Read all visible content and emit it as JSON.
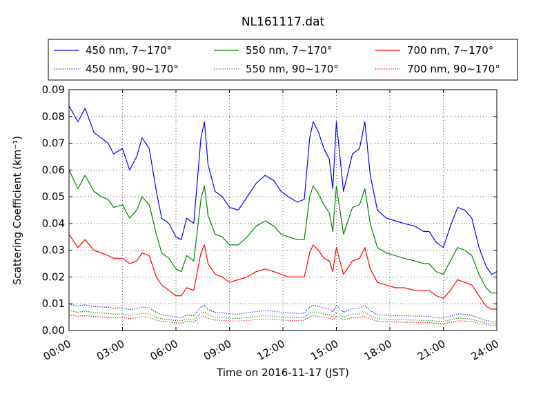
{
  "chart_data": {
    "type": "line",
    "title": "NL161117.dat",
    "xlabel": "Time on 2016-11-17 (JST)",
    "ylabel": "Scattering Coefficient (km⁻¹)",
    "x_unit": "hours",
    "xlim": [
      0,
      24
    ],
    "ylim": [
      0,
      0.09
    ],
    "xticks": [
      0,
      3,
      6,
      9,
      12,
      15,
      18,
      21,
      24
    ],
    "xtick_labels": [
      "00:00",
      "03:00",
      "06:00",
      "09:00",
      "12:00",
      "15:00",
      "18:00",
      "21:00",
      "24:00"
    ],
    "yticks": [
      0,
      0.01,
      0.02,
      0.03,
      0.04,
      0.05,
      0.06,
      0.07,
      0.08,
      0.09
    ],
    "ytick_labels": [
      "0.00",
      "0.01",
      "0.02",
      "0.03",
      "0.04",
      "0.05",
      "0.06",
      "0.07",
      "0.08",
      "0.09"
    ],
    "grid": true,
    "legend_position": "top",
    "x": [
      0,
      0.5,
      0.9,
      1.4,
      1.8,
      2.2,
      2.5,
      3.0,
      3.4,
      3.8,
      4.1,
      4.5,
      4.9,
      5.2,
      5.6,
      6.0,
      6.3,
      6.6,
      7.0,
      7.4,
      7.6,
      7.8,
      8.2,
      8.6,
      9.0,
      9.5,
      10.0,
      10.5,
      11.0,
      11.5,
      11.9,
      12.3,
      12.8,
      13.2,
      13.5,
      13.7,
      14.0,
      14.3,
      14.6,
      14.8,
      15.0,
      15.4,
      15.9,
      16.3,
      16.6,
      16.9,
      17.3,
      17.8,
      18.3,
      18.8,
      19.4,
      19.9,
      20.2,
      20.6,
      21.0,
      21.4,
      21.8,
      22.2,
      22.6,
      23.0,
      23.4,
      23.7,
      24.0
    ],
    "series": [
      {
        "name": "450 nm, 7∼170°",
        "color": "#0000ff",
        "dash": "solid",
        "values": [
          0.084,
          0.078,
          0.083,
          0.074,
          0.072,
          0.07,
          0.066,
          0.068,
          0.06,
          0.065,
          0.072,
          0.068,
          0.052,
          0.042,
          0.04,
          0.035,
          0.034,
          0.042,
          0.04,
          0.072,
          0.078,
          0.062,
          0.052,
          0.05,
          0.046,
          0.045,
          0.05,
          0.055,
          0.058,
          0.056,
          0.052,
          0.05,
          0.048,
          0.049,
          0.072,
          0.078,
          0.074,
          0.068,
          0.064,
          0.053,
          0.078,
          0.052,
          0.066,
          0.068,
          0.078,
          0.058,
          0.045,
          0.042,
          0.041,
          0.04,
          0.039,
          0.037,
          0.037,
          0.033,
          0.031,
          0.039,
          0.046,
          0.045,
          0.042,
          0.031,
          0.024,
          0.021,
          0.022
        ]
      },
      {
        "name": "550 nm, 7∼170°",
        "color": "#008000",
        "dash": "solid",
        "values": [
          0.06,
          0.053,
          0.058,
          0.052,
          0.05,
          0.049,
          0.046,
          0.047,
          0.042,
          0.045,
          0.05,
          0.047,
          0.036,
          0.029,
          0.027,
          0.023,
          0.022,
          0.028,
          0.026,
          0.049,
          0.054,
          0.043,
          0.036,
          0.035,
          0.032,
          0.032,
          0.035,
          0.039,
          0.041,
          0.039,
          0.036,
          0.035,
          0.034,
          0.034,
          0.05,
          0.054,
          0.051,
          0.047,
          0.044,
          0.037,
          0.054,
          0.036,
          0.046,
          0.047,
          0.053,
          0.04,
          0.031,
          0.029,
          0.028,
          0.027,
          0.026,
          0.025,
          0.025,
          0.022,
          0.021,
          0.026,
          0.031,
          0.03,
          0.028,
          0.021,
          0.016,
          0.014,
          0.014
        ]
      },
      {
        "name": "700 nm, 7∼170°",
        "color": "#ff0000",
        "dash": "solid",
        "values": [
          0.036,
          0.031,
          0.034,
          0.03,
          0.029,
          0.028,
          0.027,
          0.027,
          0.025,
          0.026,
          0.029,
          0.028,
          0.02,
          0.017,
          0.015,
          0.013,
          0.013,
          0.016,
          0.015,
          0.029,
          0.032,
          0.025,
          0.021,
          0.02,
          0.018,
          0.019,
          0.02,
          0.022,
          0.023,
          0.022,
          0.021,
          0.02,
          0.02,
          0.02,
          0.029,
          0.032,
          0.03,
          0.027,
          0.026,
          0.022,
          0.031,
          0.021,
          0.026,
          0.027,
          0.031,
          0.023,
          0.018,
          0.017,
          0.016,
          0.016,
          0.015,
          0.015,
          0.015,
          0.013,
          0.012,
          0.015,
          0.019,
          0.018,
          0.017,
          0.013,
          0.009,
          0.008,
          0.008
        ]
      },
      {
        "name": "450 nm, 90∼170°",
        "color": "#0000ff",
        "dash": "dotted",
        "values": [
          0.0098,
          0.0092,
          0.0096,
          0.009,
          0.0088,
          0.0087,
          0.0083,
          0.0085,
          0.0078,
          0.0082,
          0.0088,
          0.0085,
          0.0068,
          0.0058,
          0.0055,
          0.005,
          0.0049,
          0.0058,
          0.0056,
          0.0088,
          0.0094,
          0.0078,
          0.0068,
          0.0066,
          0.0062,
          0.0061,
          0.0066,
          0.0071,
          0.0074,
          0.0072,
          0.0068,
          0.0066,
          0.0064,
          0.0065,
          0.0088,
          0.0094,
          0.009,
          0.0084,
          0.008,
          0.0069,
          0.0094,
          0.0068,
          0.0082,
          0.0084,
          0.0094,
          0.0074,
          0.006,
          0.0057,
          0.0056,
          0.0055,
          0.0054,
          0.0052,
          0.0052,
          0.0048,
          0.0046,
          0.0054,
          0.0062,
          0.0061,
          0.0057,
          0.0046,
          0.0038,
          0.0034,
          0.0035
        ]
      },
      {
        "name": "550 nm, 90∼170°",
        "color": "#008000",
        "dash": "dotted",
        "values": [
          0.0075,
          0.0068,
          0.0073,
          0.0067,
          0.0065,
          0.0064,
          0.0061,
          0.0062,
          0.0057,
          0.006,
          0.0065,
          0.0062,
          0.005,
          0.0043,
          0.0041,
          0.0037,
          0.0036,
          0.0043,
          0.0041,
          0.0065,
          0.007,
          0.0058,
          0.005,
          0.0049,
          0.0046,
          0.0045,
          0.0049,
          0.0053,
          0.0055,
          0.0053,
          0.005,
          0.0049,
          0.0048,
          0.0048,
          0.0065,
          0.007,
          0.0067,
          0.0062,
          0.0059,
          0.0051,
          0.007,
          0.005,
          0.0061,
          0.0062,
          0.0069,
          0.0055,
          0.0044,
          0.0042,
          0.0041,
          0.004,
          0.0039,
          0.0038,
          0.0038,
          0.0035,
          0.0034,
          0.004,
          0.0046,
          0.0045,
          0.0042,
          0.0034,
          0.0028,
          0.0025,
          0.0026
        ]
      },
      {
        "name": "700 nm, 90∼170°",
        "color": "#ff0000",
        "dash": "dotted",
        "values": [
          0.0058,
          0.0053,
          0.0056,
          0.0052,
          0.0051,
          0.005,
          0.0048,
          0.0049,
          0.0045,
          0.0047,
          0.0051,
          0.0049,
          0.0039,
          0.0034,
          0.0032,
          0.0029,
          0.0028,
          0.0034,
          0.0032,
          0.0051,
          0.0055,
          0.0045,
          0.0039,
          0.0038,
          0.0036,
          0.0035,
          0.0038,
          0.0041,
          0.0043,
          0.0042,
          0.0039,
          0.0038,
          0.0037,
          0.0038,
          0.0051,
          0.0055,
          0.0052,
          0.0049,
          0.0046,
          0.004,
          0.0055,
          0.0039,
          0.0048,
          0.0049,
          0.0054,
          0.0043,
          0.0035,
          0.0033,
          0.0032,
          0.0031,
          0.0031,
          0.003,
          0.003,
          0.0027,
          0.0026,
          0.0031,
          0.0036,
          0.0035,
          0.0033,
          0.0026,
          0.0022,
          0.0019,
          0.002
        ]
      }
    ]
  }
}
